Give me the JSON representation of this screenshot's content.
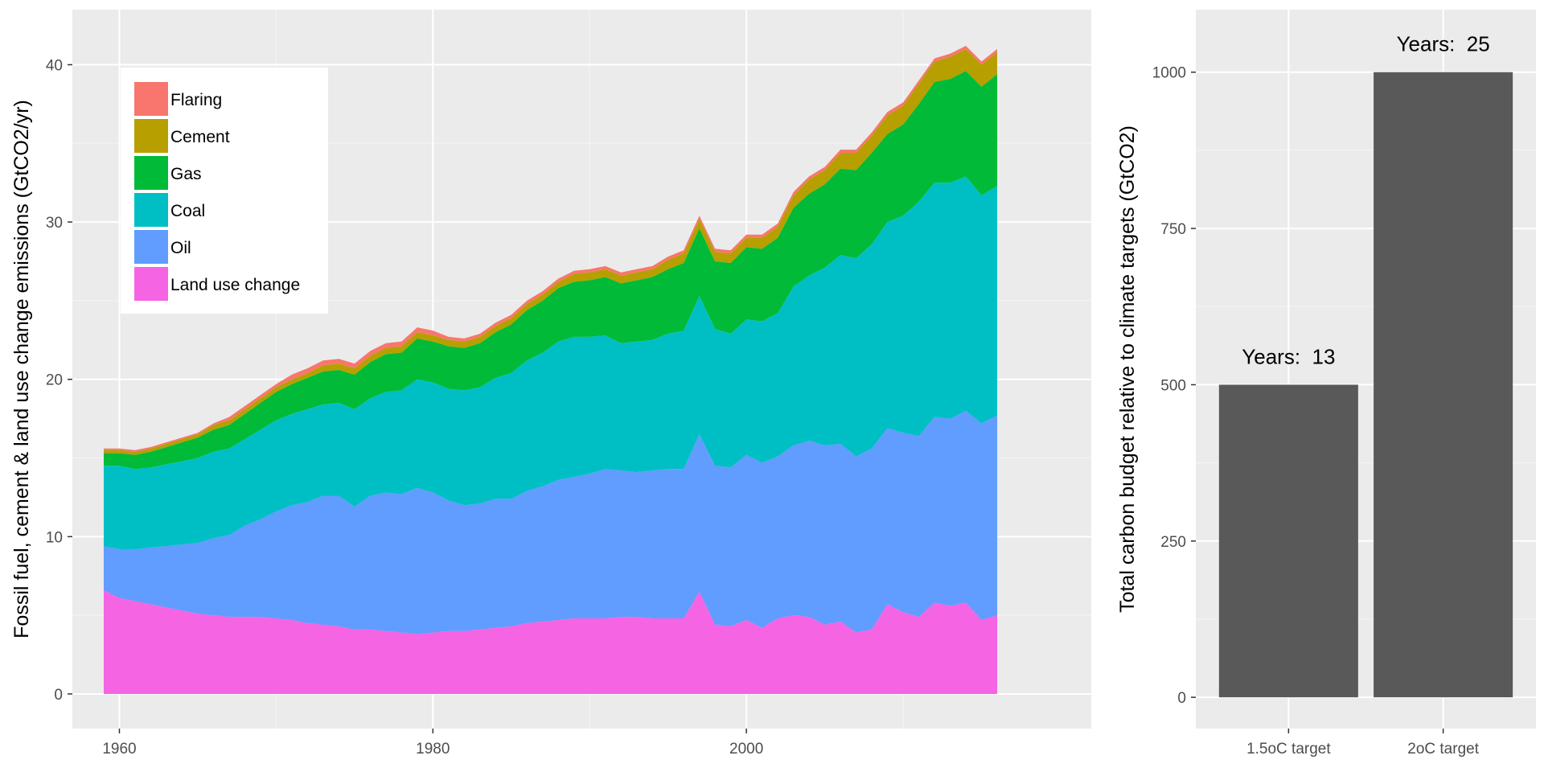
{
  "chart_data": [
    {
      "type": "area",
      "stacked": true,
      "ylabel": "Fossil fuel, cement & land use change emissions (GtCO2/yr)",
      "xlabel": "",
      "xlim": [
        1957,
        2022
      ],
      "ylim": [
        -2.2,
        43.5
      ],
      "x_ticks": [
        1960,
        1980,
        2000
      ],
      "y_ticks": [
        0,
        10,
        20,
        30,
        40
      ],
      "grid": true,
      "legend_position": "top-left inside",
      "legend_order": [
        "Flaring",
        "Cement",
        "Gas",
        "Coal",
        "Oil",
        "Land use change"
      ],
      "colors": {
        "Flaring": "#f8766d",
        "Cement": "#b79f00",
        "Gas": "#00ba38",
        "Coal": "#00bfc4",
        "Oil": "#619cff",
        "Land use change": "#f564e3"
      },
      "x": [
        1959,
        1960,
        1961,
        1962,
        1963,
        1964,
        1965,
        1966,
        1967,
        1968,
        1969,
        1970,
        1971,
        1972,
        1973,
        1974,
        1975,
        1976,
        1977,
        1978,
        1979,
        1980,
        1981,
        1982,
        1983,
        1984,
        1985,
        1986,
        1987,
        1988,
        1989,
        1990,
        1991,
        1992,
        1993,
        1994,
        1995,
        1996,
        1997,
        1998,
        1999,
        2000,
        2001,
        2002,
        2003,
        2004,
        2005,
        2006,
        2007,
        2008,
        2009,
        2010,
        2011,
        2012,
        2013,
        2014,
        2015,
        2016
      ],
      "series": [
        {
          "name": "Land use change",
          "values": [
            6.6,
            6.1,
            5.9,
            5.7,
            5.5,
            5.3,
            5.1,
            5.0,
            4.9,
            4.9,
            4.9,
            4.8,
            4.7,
            4.5,
            4.4,
            4.3,
            4.1,
            4.1,
            4.0,
            3.9,
            3.8,
            3.9,
            4.0,
            4.0,
            4.1,
            4.2,
            4.3,
            4.5,
            4.6,
            4.7,
            4.8,
            4.8,
            4.8,
            4.9,
            4.9,
            4.8,
            4.8,
            4.8,
            6.5,
            4.4,
            4.3,
            4.7,
            4.2,
            4.8,
            5.0,
            4.9,
            4.4,
            4.6,
            3.9,
            4.1,
            5.7,
            5.2,
            4.9,
            5.8,
            5.6,
            5.8,
            4.7,
            5.0
          ]
        },
        {
          "name": "Oil",
          "values": [
            2.8,
            3.1,
            3.3,
            3.6,
            3.9,
            4.2,
            4.5,
            4.9,
            5.2,
            5.8,
            6.2,
            6.8,
            7.3,
            7.7,
            8.2,
            8.3,
            7.8,
            8.5,
            8.8,
            8.8,
            9.3,
            8.9,
            8.3,
            8.0,
            8.0,
            8.2,
            8.1,
            8.4,
            8.6,
            8.9,
            9.0,
            9.2,
            9.5,
            9.3,
            9.2,
            9.4,
            9.5,
            9.5,
            10.0,
            10.1,
            10.1,
            10.5,
            10.5,
            10.3,
            10.8,
            11.2,
            11.4,
            11.3,
            11.2,
            11.5,
            11.2,
            11.4,
            11.5,
            11.8,
            11.9,
            12.2,
            12.5,
            12.7
          ]
        },
        {
          "name": "Coal",
          "values": [
            5.1,
            5.3,
            5.1,
            5.1,
            5.2,
            5.3,
            5.4,
            5.5,
            5.5,
            5.5,
            5.7,
            5.8,
            5.8,
            5.9,
            5.8,
            5.9,
            6.2,
            6.2,
            6.4,
            6.6,
            6.9,
            7.0,
            7.1,
            7.3,
            7.4,
            7.7,
            8.0,
            8.3,
            8.5,
            8.8,
            8.9,
            8.7,
            8.5,
            8.1,
            8.3,
            8.3,
            8.6,
            8.8,
            8.8,
            8.7,
            8.5,
            8.6,
            9.0,
            9.1,
            10.1,
            10.5,
            11.3,
            12.0,
            12.6,
            13.0,
            13.1,
            13.8,
            14.9,
            14.9,
            15.0,
            14.9,
            14.5,
            14.6
          ]
        },
        {
          "name": "Gas",
          "values": [
            0.8,
            0.8,
            0.9,
            1.0,
            1.1,
            1.2,
            1.3,
            1.4,
            1.5,
            1.6,
            1.7,
            1.8,
            1.9,
            2.0,
            2.1,
            2.1,
            2.2,
            2.3,
            2.4,
            2.4,
            2.6,
            2.6,
            2.7,
            2.7,
            2.8,
            2.9,
            3.1,
            3.2,
            3.3,
            3.4,
            3.5,
            3.6,
            3.7,
            3.8,
            3.9,
            4.0,
            4.1,
            4.3,
            4.3,
            4.3,
            4.5,
            4.6,
            4.6,
            4.8,
            5.0,
            5.2,
            5.3,
            5.5,
            5.6,
            5.8,
            5.6,
            5.8,
            6.2,
            6.4,
            6.6,
            6.7,
            6.9,
            7.1
          ]
        },
        {
          "name": "Cement",
          "values": [
            0.2,
            0.2,
            0.2,
            0.2,
            0.2,
            0.2,
            0.2,
            0.3,
            0.3,
            0.3,
            0.3,
            0.3,
            0.3,
            0.3,
            0.4,
            0.4,
            0.4,
            0.4,
            0.4,
            0.4,
            0.4,
            0.4,
            0.4,
            0.4,
            0.4,
            0.4,
            0.4,
            0.4,
            0.4,
            0.4,
            0.5,
            0.5,
            0.5,
            0.5,
            0.5,
            0.5,
            0.6,
            0.6,
            0.6,
            0.6,
            0.6,
            0.6,
            0.7,
            0.7,
            0.8,
            0.9,
            0.9,
            1.0,
            1.1,
            1.1,
            1.2,
            1.2,
            1.3,
            1.3,
            1.4,
            1.4,
            1.4,
            1.4
          ]
        },
        {
          "name": "Flaring",
          "values": [
            0.1,
            0.1,
            0.1,
            0.1,
            0.1,
            0.1,
            0.1,
            0.1,
            0.2,
            0.2,
            0.2,
            0.2,
            0.3,
            0.3,
            0.3,
            0.3,
            0.3,
            0.3,
            0.3,
            0.3,
            0.3,
            0.3,
            0.2,
            0.2,
            0.2,
            0.2,
            0.2,
            0.2,
            0.2,
            0.2,
            0.2,
            0.2,
            0.2,
            0.2,
            0.2,
            0.2,
            0.2,
            0.2,
            0.2,
            0.2,
            0.2,
            0.2,
            0.2,
            0.2,
            0.2,
            0.2,
            0.2,
            0.2,
            0.2,
            0.2,
            0.2,
            0.2,
            0.2,
            0.2,
            0.2,
            0.2,
            0.2,
            0.2
          ]
        }
      ]
    },
    {
      "type": "bar",
      "ylabel": "Total carbon budget relative to climate targets (GtCO2)",
      "xlabel": "",
      "categories": [
        "1.5oC target",
        "2oC target"
      ],
      "values": [
        500,
        1000
      ],
      "annotations": [
        "Years:  13",
        "Years:  25"
      ],
      "ylim": [
        -50,
        1100
      ],
      "y_ticks": [
        0,
        250,
        500,
        750,
        1000
      ],
      "grid": true,
      "bar_color": "#595959"
    }
  ]
}
